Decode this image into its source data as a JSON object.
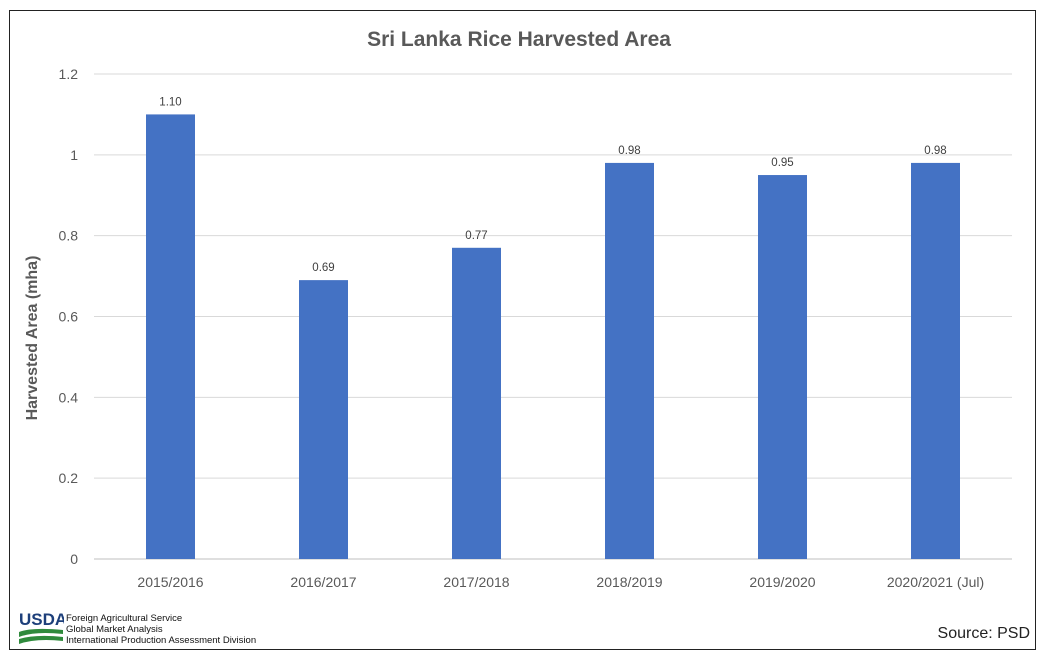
{
  "chart_data": {
    "type": "bar",
    "title": "Sri Lanka Rice Harvested Area",
    "xlabel": "",
    "ylabel": "Harvested Area (mha)",
    "categories": [
      "2015/2016",
      "2016/2017",
      "2017/2018",
      "2018/2019",
      "2019/2020",
      "2020/2021 (Jul)"
    ],
    "values": [
      1.1,
      0.69,
      0.77,
      0.98,
      0.95,
      0.98
    ],
    "data_labels": [
      "1.10",
      "0.69",
      "0.77",
      "0.98",
      "0.95",
      "0.98"
    ],
    "ylim": [
      0,
      1.2
    ],
    "yticks": [
      "0",
      "0.2",
      "0.4",
      "0.6",
      "0.8",
      "1",
      "1.2"
    ],
    "grid": true,
    "bar_color": "#4472c4"
  },
  "source": "Source: PSD",
  "logo": {
    "mark": "USDA",
    "lines": [
      "Foreign Agricultural Service",
      "Global Market Analysis",
      "International Production Assessment Division"
    ]
  }
}
